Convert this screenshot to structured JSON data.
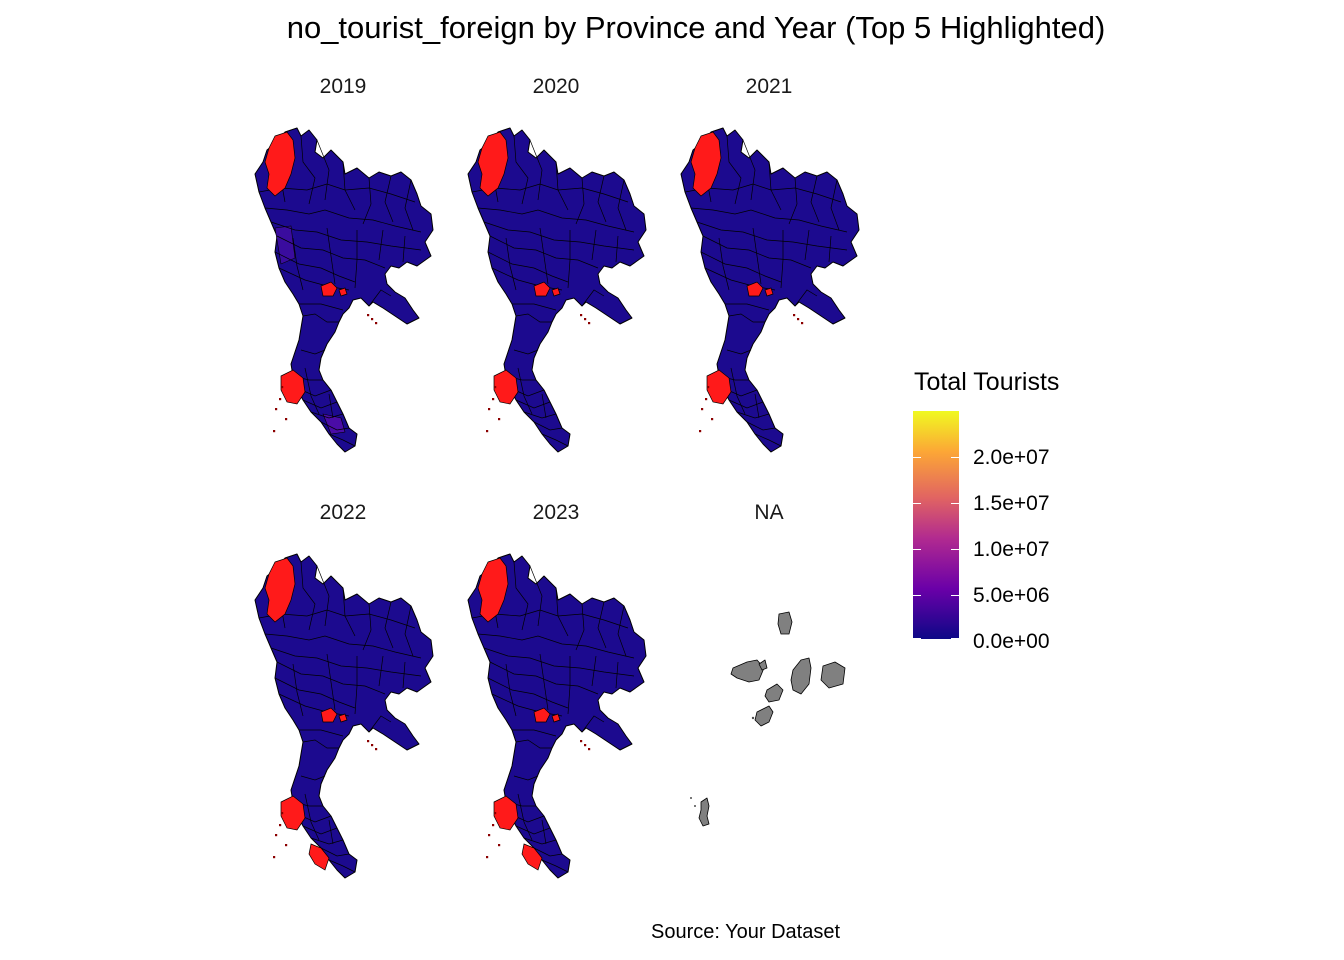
{
  "title": "no_tourist_foreign by Province and Year (Top 5 Highlighted)",
  "panels": [
    {
      "label": "2019"
    },
    {
      "label": "2020"
    },
    {
      "label": "2021"
    },
    {
      "label": "2022"
    },
    {
      "label": "2023"
    },
    {
      "label": "NA"
    }
  ],
  "legend": {
    "title": "Total Tourists",
    "labels": [
      "2.0e+07",
      "1.5e+07",
      "1.0e+07",
      "5.0e+06",
      "0.0e+00"
    ],
    "colors": [
      "#0d0887",
      "#6a00a8",
      "#b12a90",
      "#e16462",
      "#fca636",
      "#f0f921"
    ]
  },
  "fill_colors": {
    "low": "#1c0a8f",
    "highlight": "#ff1a1a",
    "na": "#808080",
    "outline": "#000000"
  },
  "caption": "Source: Your Dataset"
}
